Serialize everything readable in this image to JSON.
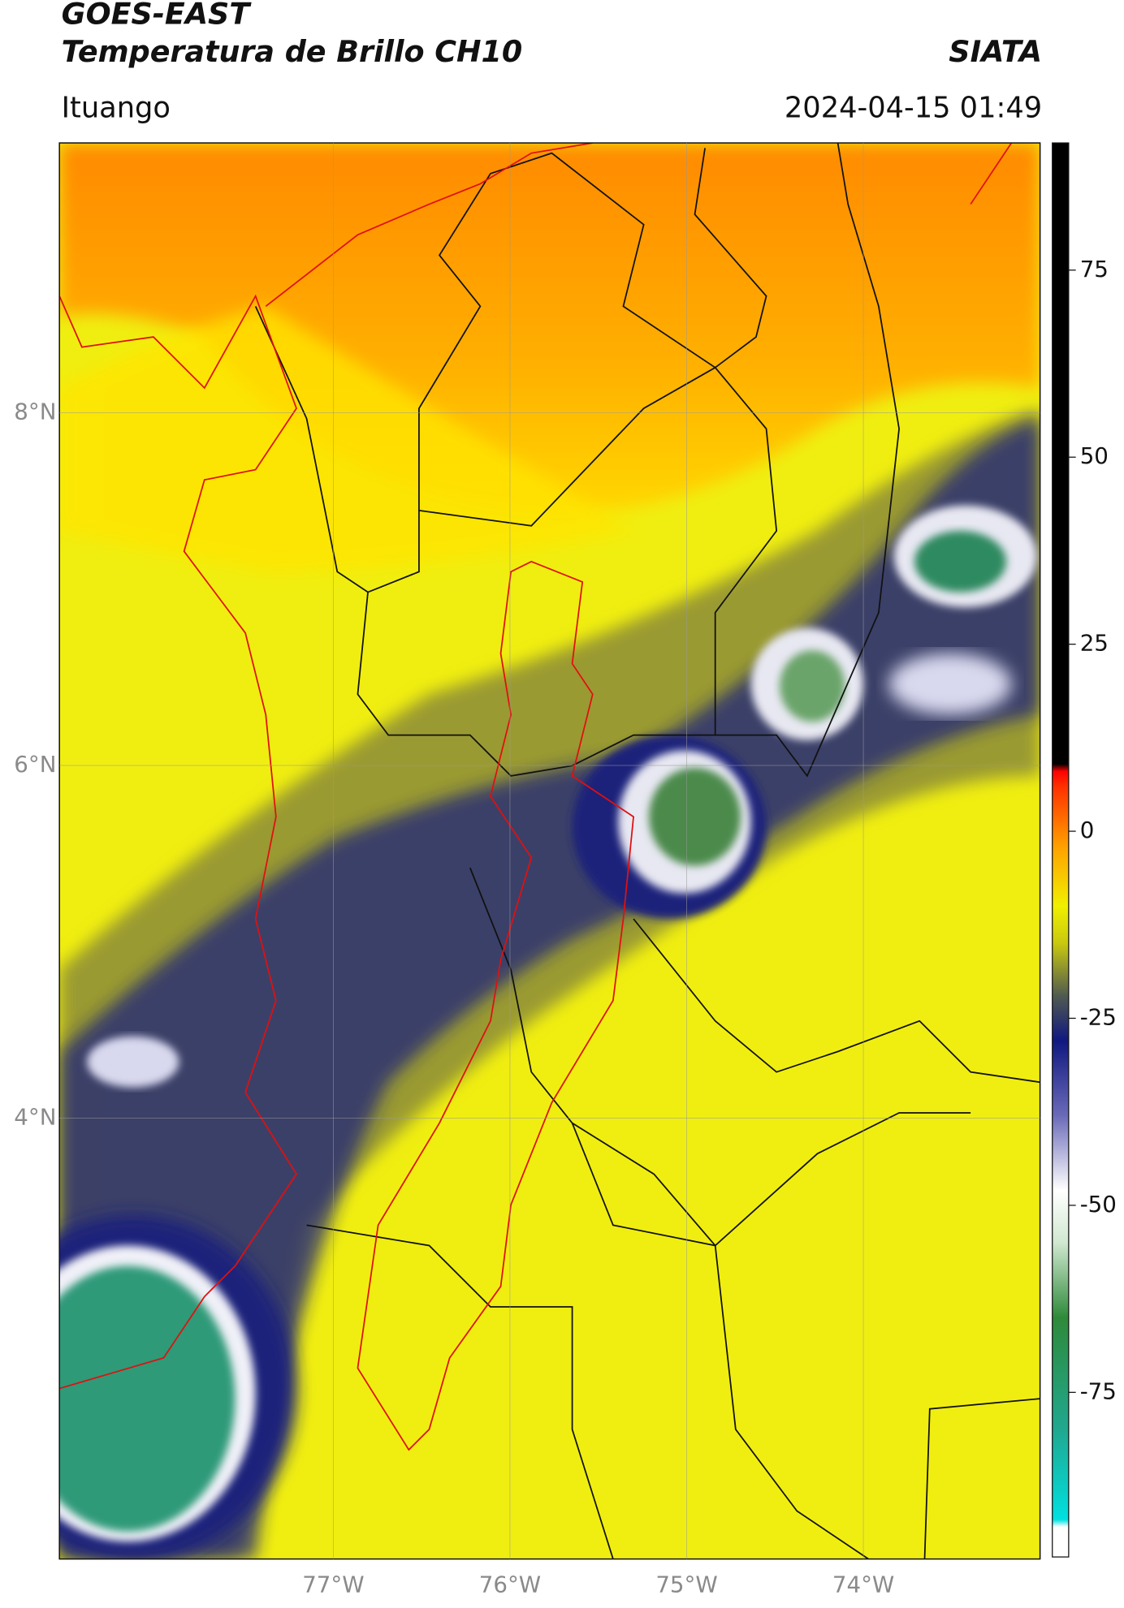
{
  "header": {
    "title": "GOES-EAST",
    "subtitle": "Temperatura de Brillo CH10",
    "brand": "SIATA",
    "location": "Ituango",
    "datetime": "2024-04-15 01:49"
  },
  "map": {
    "xlim": [
      -78.55,
      -73.0
    ],
    "ylim": [
      1.5,
      9.53
    ],
    "xticks": [
      {
        "value": -77,
        "label": "77°W"
      },
      {
        "value": -76,
        "label": "76°W"
      },
      {
        "value": -75,
        "label": "75°W"
      },
      {
        "value": -74,
        "label": "74°W"
      }
    ],
    "yticks": [
      {
        "value": 8,
        "label": "8°N"
      },
      {
        "value": 6,
        "label": "6°N"
      },
      {
        "value": 4,
        "label": "4°N"
      }
    ],
    "grid": true
  },
  "colorbar": {
    "clim": [
      -97,
      92
    ],
    "ticks": [
      75,
      50,
      25,
      0,
      -25,
      -50,
      -75
    ],
    "colormap": [
      {
        "value": -97,
        "color": "#ffffff"
      },
      {
        "value": -93,
        "color": "#ffffff"
      },
      {
        "value": -92,
        "color": "#00e0e0"
      },
      {
        "value": -80,
        "color": "#20a890"
      },
      {
        "value": -65,
        "color": "#2e8a3a"
      },
      {
        "value": -55,
        "color": "#d0e8d0"
      },
      {
        "value": -48,
        "color": "#ffffff"
      },
      {
        "value": -38,
        "color": "#6a6ab8"
      },
      {
        "value": -28,
        "color": "#101880"
      },
      {
        "value": -22,
        "color": "#505a50"
      },
      {
        "value": -15,
        "color": "#c8c810"
      },
      {
        "value": -10,
        "color": "#f0f000"
      },
      {
        "value": -2,
        "color": "#ffa000"
      },
      {
        "value": 6,
        "color": "#ff3000"
      },
      {
        "value": 8,
        "color": "#ff0000"
      },
      {
        "value": 9,
        "color": "#000000"
      },
      {
        "value": 92,
        "color": "#000000"
      }
    ]
  }
}
